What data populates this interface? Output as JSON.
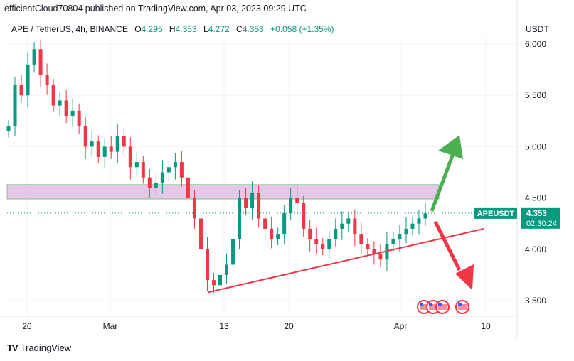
{
  "header": {
    "published": "efficientCloud70804 published on TradingView.com, Apr 03, 2023 09:29 UTC"
  },
  "legend": {
    "symbol": "APE / TetherUS, 4h, BINANCE",
    "open_k": "O",
    "open": "4.295",
    "high_k": "H",
    "high": "4.353",
    "low_k": "L",
    "low": "4.272",
    "close_k": "C",
    "close": "4.353",
    "change": "+0.058 (+1.35%)"
  },
  "axis": {
    "unit": "USDT",
    "y_ticks": [
      "6.000",
      "5.500",
      "5.000",
      "4.500",
      "4.000",
      "3.500"
    ],
    "x_ticks": [
      "20",
      "Mar",
      "13",
      "20",
      "Apr",
      "10"
    ]
  },
  "price_badge": {
    "symbol": "APEUSDT",
    "price": "4.353",
    "countdown": "02:30:24"
  },
  "brand": {
    "name": "TradingView",
    "logo": "TV"
  },
  "colors": {
    "up": "#089981",
    "down": "#f23645",
    "zone": "#e1bee7",
    "trendline": "#f23645",
    "arrow_up": "#4caf50",
    "arrow_down": "#f23645"
  },
  "chart_data": {
    "type": "candlestick",
    "ylim": [
      3.4,
      6.1
    ],
    "y_ticks": [
      6.0,
      5.5,
      5.0,
      4.5,
      4.0,
      3.5
    ],
    "resistance_zone": [
      4.49,
      4.63
    ],
    "current_price": 4.353,
    "trendline": {
      "from": [
        "2023-03-10",
        3.58
      ],
      "to": [
        "2023-04-10",
        4.2
      ]
    },
    "closes": [
      5.2,
      5.6,
      5.5,
      5.8,
      5.95,
      5.7,
      5.6,
      5.4,
      5.45,
      5.3,
      5.35,
      5.2,
      5.0,
      5.05,
      4.9,
      5.0,
      4.95,
      5.1,
      5.0,
      4.8,
      4.85,
      4.7,
      4.6,
      4.65,
      4.75,
      4.8,
      4.85,
      4.7,
      4.5,
      4.3,
      4.0,
      3.7,
      3.65,
      3.75,
      3.85,
      4.1,
      4.5,
      4.4,
      4.55,
      4.3,
      4.2,
      4.1,
      4.15,
      4.35,
      4.5,
      4.45,
      4.2,
      4.1,
      4.05,
      4.0,
      4.1,
      4.2,
      4.25,
      4.3,
      4.15,
      4.05,
      4.0,
      3.95,
      3.9,
      4.05,
      4.1,
      4.15,
      4.2,
      4.25,
      4.3,
      4.35
    ]
  }
}
